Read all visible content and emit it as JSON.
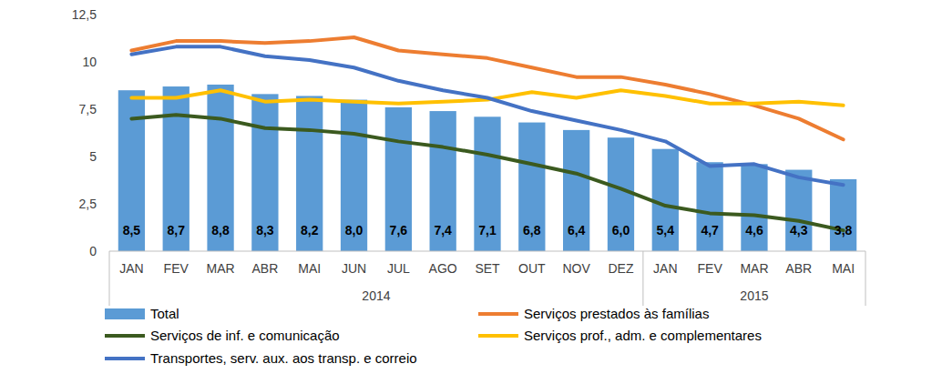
{
  "chart_data": {
    "type": "bar",
    "categories": [
      "JAN",
      "FEV",
      "MAR",
      "ABR",
      "MAI",
      "JUN",
      "JUL",
      "AGO",
      "SET",
      "OUT",
      "NOV",
      "DEZ",
      "JAN",
      "FEV",
      "MAR",
      "ABR",
      "MAI"
    ],
    "category_groups": [
      "2014",
      "2014",
      "2014",
      "2014",
      "2014",
      "2014",
      "2014",
      "2014",
      "2014",
      "2014",
      "2014",
      "2014",
      "2015",
      "2015",
      "2015",
      "2015",
      "2015"
    ],
    "ylim": [
      0,
      12.5
    ],
    "yticks": [
      0,
      {
        "value": 2.5,
        "label": "2,5"
      },
      5,
      {
        "value": 7.5,
        "label": "7,5"
      },
      10,
      {
        "value": 12.5,
        "label": "12,5"
      }
    ],
    "legend": "bottom",
    "grid": false,
    "series": [
      {
        "name": "Total",
        "type": "bar",
        "color": "#5b9bd5",
        "data_labels": true,
        "values": [
          8.5,
          8.7,
          8.8,
          8.3,
          8.2,
          8.0,
          7.6,
          7.4,
          7.1,
          6.8,
          6.4,
          6.0,
          5.4,
          4.7,
          4.6,
          4.3,
          3.8
        ],
        "value_labels": [
          "8,5",
          "8,7",
          "8,8",
          "8,3",
          "8,2",
          "8,0",
          "7,6",
          "7,4",
          "7,1",
          "6,8",
          "6,4",
          "6,0",
          "5,4",
          "4,7",
          "4,6",
          "4,3",
          "3,8"
        ]
      },
      {
        "name": "Serviços prestados às famílias",
        "type": "line",
        "color": "#ed7d31",
        "values": [
          10.6,
          11.1,
          11.1,
          11.0,
          11.1,
          11.3,
          10.6,
          10.4,
          10.2,
          9.7,
          9.2,
          9.2,
          8.8,
          8.3,
          7.7,
          7.0,
          5.9
        ]
      },
      {
        "name": "Serviços de inf. e comunicação",
        "type": "line",
        "color": "#3b5a1f",
        "values": [
          7.0,
          7.2,
          7.0,
          6.5,
          6.4,
          6.2,
          5.8,
          5.5,
          5.1,
          4.6,
          4.1,
          3.3,
          2.4,
          2.0,
          1.9,
          1.6,
          1.1
        ]
      },
      {
        "name": "Serviços prof., adm. e complementares",
        "type": "line",
        "color": "#ffc000",
        "values": [
          8.1,
          8.1,
          8.5,
          7.9,
          8.0,
          7.9,
          7.8,
          7.9,
          8.0,
          8.4,
          8.1,
          8.5,
          8.2,
          7.8,
          7.8,
          7.9,
          7.7
        ]
      },
      {
        "name": "Transportes, serv. aux. aos transp. e correio",
        "type": "line",
        "color": "#4472c4",
        "values": [
          10.4,
          10.8,
          10.8,
          10.3,
          10.1,
          9.7,
          9.0,
          8.5,
          8.1,
          7.4,
          6.9,
          6.4,
          5.8,
          4.5,
          4.6,
          3.9,
          3.5
        ]
      }
    ]
  }
}
